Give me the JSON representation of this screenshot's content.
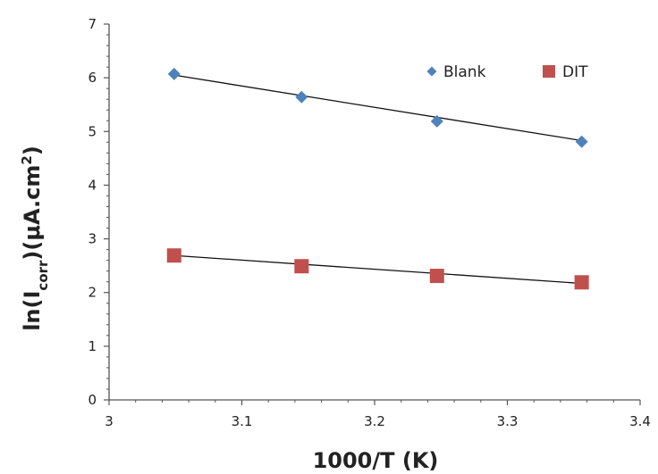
{
  "chart_data": {
    "type": "scatter",
    "title": "",
    "xlabel": "1000/T (K)",
    "ylabel": {
      "prefix": "ln(I",
      "subscript": "corr",
      "middle": ")(μA.cm",
      "superscript": "2",
      "suffix": ")"
    },
    "xlim": [
      3,
      3.4
    ],
    "ylim": [
      0,
      7
    ],
    "x_ticks": [
      "3",
      "3.1",
      "3.2",
      "3.3",
      "3.4"
    ],
    "y_ticks": [
      "0",
      "1",
      "2",
      "3",
      "4",
      "5",
      "6",
      "7"
    ],
    "grid": false,
    "legend_position": "top-right",
    "series": [
      {
        "name": "Blank",
        "marker": "diamond",
        "color": "#4F81BD",
        "x": [
          3.049,
          3.145,
          3.247,
          3.356
        ],
        "y": [
          6.07,
          5.64,
          5.19,
          4.81
        ],
        "trendline": {
          "x": [
            3.049,
            3.356
          ],
          "y": [
            6.05,
            4.83
          ]
        }
      },
      {
        "name": "DIT",
        "marker": "square",
        "color": "#C0504D",
        "x": [
          3.049,
          3.145,
          3.247,
          3.356
        ],
        "y": [
          2.69,
          2.49,
          2.31,
          2.19
        ],
        "trendline": {
          "x": [
            3.049,
            3.356
          ],
          "y": [
            2.69,
            2.17
          ]
        }
      }
    ]
  }
}
